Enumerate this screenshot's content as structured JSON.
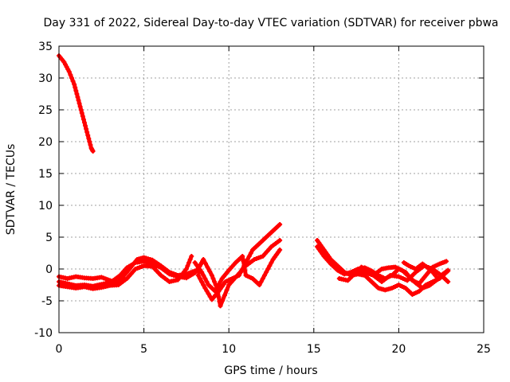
{
  "chart_data": {
    "type": "scatter",
    "title": "Day 331 of 2022, Sidereal Day-to-day VTEC variation (SDTVAR) for receiver pbwa",
    "xlabel": "GPS time / hours",
    "ylabel": "SDTVAR / TECUs",
    "xlim": [
      0,
      25
    ],
    "ylim": [
      -10,
      35
    ],
    "xticks": [
      0,
      5,
      10,
      15,
      20,
      25
    ],
    "yticks": [
      -10,
      -5,
      0,
      5,
      10,
      15,
      20,
      25,
      30,
      35
    ],
    "grid": true,
    "marker_color": "#ff0000",
    "series": [
      {
        "name": "s1",
        "points": [
          [
            0,
            33.5
          ],
          [
            0.3,
            32.5
          ],
          [
            0.6,
            31
          ],
          [
            0.9,
            29
          ],
          [
            1.1,
            27
          ],
          [
            1.3,
            25
          ],
          [
            1.5,
            23
          ],
          [
            1.7,
            21
          ],
          [
            1.9,
            19
          ],
          [
            2.0,
            18.5
          ]
        ]
      },
      {
        "name": "s2",
        "points": [
          [
            0,
            -1.2
          ],
          [
            0.5,
            -1.5
          ],
          [
            1,
            -1.2
          ],
          [
            1.5,
            -1.4
          ],
          [
            2,
            -1.5
          ],
          [
            2.5,
            -1.3
          ],
          [
            3,
            -1.8
          ],
          [
            3.5,
            -2.2
          ],
          [
            4,
            -1.5
          ]
        ]
      },
      {
        "name": "s3",
        "points": [
          [
            0,
            -2
          ],
          [
            0.5,
            -2.3
          ],
          [
            1,
            -2.6
          ],
          [
            1.5,
            -2.5
          ],
          [
            2,
            -2.7
          ],
          [
            2.5,
            -2.4
          ],
          [
            3,
            -2.1
          ],
          [
            3.5,
            -2.0
          ],
          [
            4,
            -0.5
          ],
          [
            4.3,
            0.5
          ],
          [
            4.6,
            1.5
          ],
          [
            5,
            1.8
          ],
          [
            5.5,
            1.4
          ],
          [
            6,
            0.5
          ],
          [
            6.5,
            -0.5
          ],
          [
            7,
            -1
          ],
          [
            7.5,
            -0.8
          ],
          [
            8,
            -0.3
          ],
          [
            8.4,
            -0.5
          ]
        ]
      },
      {
        "name": "s4",
        "points": [
          [
            0,
            -2.6
          ],
          [
            0.5,
            -2.8
          ],
          [
            1,
            -3.0
          ],
          [
            1.5,
            -2.8
          ],
          [
            2,
            -3.1
          ],
          [
            2.5,
            -2.9
          ],
          [
            3,
            -2.6
          ],
          [
            3.5,
            -2.5
          ],
          [
            4,
            -1.5
          ],
          [
            4.5,
            0
          ],
          [
            5,
            0.5
          ],
          [
            5.5,
            0.4
          ],
          [
            6,
            -1
          ],
          [
            6.5,
            -2
          ],
          [
            7,
            -1.7
          ],
          [
            7.5,
            0
          ],
          [
            7.8,
            2
          ]
        ]
      },
      {
        "name": "s5",
        "points": [
          [
            3.2,
            -1.8
          ],
          [
            3.6,
            -1
          ],
          [
            4,
            0.2
          ],
          [
            4.5,
            1
          ],
          [
            5,
            1.2
          ],
          [
            5.5,
            0.8
          ],
          [
            6,
            0.2
          ],
          [
            6.5,
            -0.8
          ],
          [
            7,
            -1.2
          ],
          [
            7.5,
            -1.4
          ],
          [
            8,
            -0.6
          ],
          [
            8.3,
            0.5
          ],
          [
            8.5,
            1.5
          ],
          [
            9,
            -1
          ],
          [
            9.3,
            -3
          ],
          [
            9.5,
            -5.8
          ],
          [
            10,
            -2.5
          ],
          [
            10.5,
            -1
          ],
          [
            11,
            0.5
          ],
          [
            11.5,
            1.5
          ],
          [
            12,
            2
          ],
          [
            12.5,
            3.5
          ],
          [
            13,
            4.5
          ]
        ]
      },
      {
        "name": "s6",
        "points": [
          [
            8.2,
            -1
          ],
          [
            8.6,
            -3
          ],
          [
            9,
            -4.8
          ],
          [
            9.4,
            -3.5
          ],
          [
            9.8,
            -2
          ],
          [
            10.2,
            -1.5
          ],
          [
            10.6,
            -1
          ],
          [
            11,
            1
          ],
          [
            11.4,
            3
          ],
          [
            11.8,
            4
          ],
          [
            12.2,
            5
          ],
          [
            12.6,
            6
          ],
          [
            13,
            7
          ]
        ]
      },
      {
        "name": "s7",
        "points": [
          [
            8,
            1
          ],
          [
            8.4,
            -0.5
          ],
          [
            8.8,
            -2.5
          ],
          [
            9.2,
            -3.5
          ],
          [
            9.6,
            -1.5
          ],
          [
            10,
            -0.2
          ],
          [
            10.4,
            1
          ],
          [
            10.8,
            2
          ],
          [
            11,
            -1
          ],
          [
            11.4,
            -1.5
          ],
          [
            11.8,
            -2.5
          ],
          [
            12.2,
            -0.5
          ],
          [
            12.6,
            1.5
          ],
          [
            13,
            3
          ]
        ]
      },
      {
        "name": "s8",
        "points": [
          [
            15.2,
            4.5
          ],
          [
            15.6,
            3
          ],
          [
            16,
            1.5
          ],
          [
            16.4,
            0.5
          ],
          [
            16.8,
            -0.5
          ],
          [
            17.2,
            -1
          ],
          [
            17.6,
            -0.8
          ],
          [
            18,
            -1
          ],
          [
            18.4,
            -2
          ],
          [
            18.8,
            -3
          ],
          [
            19.2,
            -3.3
          ],
          [
            19.6,
            -3
          ],
          [
            20,
            -2.5
          ],
          [
            20.4,
            -3
          ],
          [
            20.8,
            -4
          ],
          [
            21.2,
            -3.5
          ],
          [
            21.6,
            -2.5
          ],
          [
            22,
            -2
          ],
          [
            22.4,
            -1.5
          ],
          [
            22.8,
            -0.5
          ]
        ]
      },
      {
        "name": "s9",
        "points": [
          [
            15.2,
            3.5
          ],
          [
            15.6,
            2
          ],
          [
            16,
            0.8
          ],
          [
            16.4,
            -0.2
          ],
          [
            16.8,
            -0.8
          ],
          [
            17.2,
            -0.5
          ],
          [
            17.6,
            0
          ],
          [
            18,
            0.2
          ],
          [
            18.4,
            -0.3
          ],
          [
            18.8,
            -1
          ],
          [
            19.2,
            -1.5
          ],
          [
            19.6,
            -1
          ],
          [
            20,
            0
          ],
          [
            20.4,
            -0.5
          ],
          [
            20.8,
            -1.8
          ],
          [
            21.2,
            -2.3
          ],
          [
            21.6,
            -1
          ],
          [
            22,
            0.3
          ],
          [
            22.4,
            0.8
          ],
          [
            22.8,
            1.2
          ]
        ]
      },
      {
        "name": "s10",
        "points": [
          [
            16.5,
            -1.5
          ],
          [
            17,
            -1.8
          ],
          [
            17.5,
            -0.5
          ],
          [
            18,
            -0.5
          ],
          [
            18.5,
            -1
          ],
          [
            19,
            -2
          ],
          [
            19.5,
            -1
          ],
          [
            20,
            -1.2
          ],
          [
            20.5,
            -1.8
          ],
          [
            21,
            -0.5
          ],
          [
            21.5,
            0.5
          ],
          [
            22,
            0
          ],
          [
            22.5,
            -1
          ],
          [
            22.9,
            -2
          ]
        ]
      },
      {
        "name": "s11",
        "points": [
          [
            17.8,
            0.3
          ],
          [
            18.2,
            -0.3
          ],
          [
            18.6,
            -0.8
          ],
          [
            19,
            0
          ],
          [
            19.4,
            0.2
          ],
          [
            19.8,
            0.3
          ],
          [
            20.2,
            -0.2
          ],
          [
            20.6,
            -1.2
          ],
          [
            21,
            -2.2
          ],
          [
            21.4,
            -3
          ],
          [
            21.8,
            -2.6
          ],
          [
            22.2,
            -1.8
          ],
          [
            22.6,
            -1
          ],
          [
            22.9,
            -0.3
          ]
        ]
      },
      {
        "name": "s12",
        "points": [
          [
            20.3,
            1
          ],
          [
            20.6,
            0.5
          ],
          [
            21,
            0
          ],
          [
            21.4,
            0.8
          ],
          [
            21.7,
            0.2
          ],
          [
            22,
            -0.5
          ],
          [
            22.3,
            -1.5
          ],
          [
            22.6,
            -0.8
          ],
          [
            22.9,
            -0.2
          ]
        ]
      }
    ]
  }
}
